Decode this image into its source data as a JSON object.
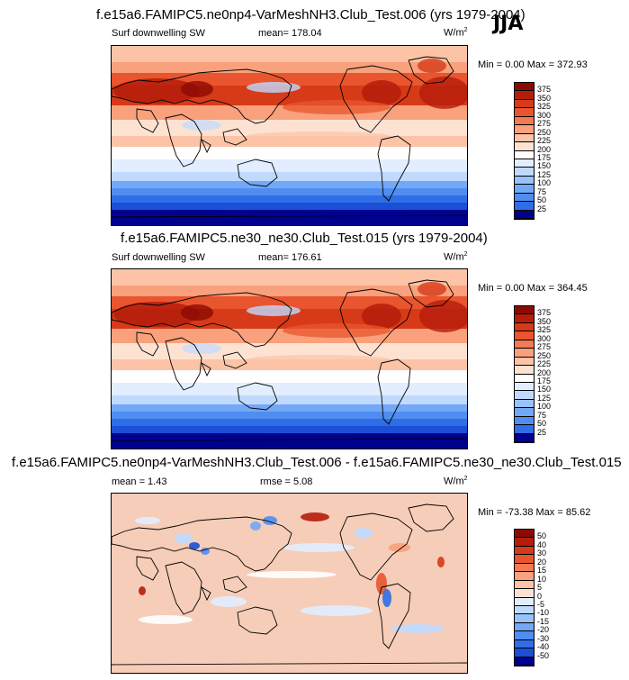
{
  "season": "JJA",
  "panels": [
    {
      "title": "f.e15a6.FAMIPC5.ne0np4-VarMeshNH3.Club_Test.006 (yrs 1979-2004)",
      "left_label": "Surf downwelling SW",
      "mean_text": "mean= 178.04",
      "units": "W/m",
      "units_sup": "2",
      "minmax": "Min =   0.00 Max = 372.93",
      "colorbar_labels": [
        "375",
        "350",
        "325",
        "300",
        "275",
        "250",
        "225",
        "200",
        "175",
        "150",
        "125",
        "100",
        "75",
        "50",
        "25"
      ]
    },
    {
      "title": "f.e15a6.FAMIPC5.ne30_ne30.Club_Test.015 (yrs 1979-2004)",
      "left_label": "Surf downwelling SW",
      "mean_text": "mean= 176.61",
      "units": "W/m",
      "units_sup": "2",
      "minmax": "Min =   0.00 Max = 364.45",
      "colorbar_labels": [
        "375",
        "350",
        "325",
        "300",
        "275",
        "250",
        "225",
        "200",
        "175",
        "150",
        "125",
        "100",
        "75",
        "50",
        "25"
      ]
    },
    {
      "title": "f.e15a6.FAMIPC5.ne0np4-VarMeshNH3.Club_Test.006 - f.e15a6.FAMIPC5.ne30_ne30.Club_Test.015",
      "left_label": "mean =   1.43",
      "mean_text": "rmse =   5.08",
      "units": "W/m",
      "units_sup": "2",
      "minmax": "Min = -73.38 Max =  85.62",
      "colorbar_labels": [
        "50",
        "40",
        "30",
        "20",
        "15",
        "10",
        "5",
        "0",
        "-5",
        "-10",
        "-15",
        "-20",
        "-30",
        "-40",
        "-50"
      ]
    }
  ],
  "colors": {
    "ramp": [
      "#00008f",
      "#0a2fb0",
      "#1a4fd6",
      "#2f6ee6",
      "#4f8ef0",
      "#72a8f6",
      "#99c2fa",
      "#c0daff",
      "#e2eeff",
      "#ffffff",
      "#fde2d2",
      "#fcc3a7",
      "#f9a07c",
      "#f47a52",
      "#e8552e",
      "#d63a18",
      "#b51d0b",
      "#8c0a04"
    ],
    "ocean": "#f6cdb8",
    "coast": "#000000"
  },
  "chart_data": [
    {
      "type": "heatmap",
      "title": "f.e15a6.FAMIPC5.ne0np4-VarMeshNH3.Club_Test.006 (yrs 1979-2004)",
      "variable": "Surf downwelling SW",
      "units": "W/m2",
      "season": "JJA",
      "mean": 178.04,
      "min": 0.0,
      "max": 372.93,
      "levels": [
        25,
        50,
        75,
        100,
        125,
        150,
        175,
        200,
        225,
        250,
        275,
        300,
        325,
        350,
        375
      ]
    },
    {
      "type": "heatmap",
      "title": "f.e15a6.FAMIPC5.ne30_ne30.Club_Test.015 (yrs 1979-2004)",
      "variable": "Surf downwelling SW",
      "units": "W/m2",
      "season": "JJA",
      "mean": 176.61,
      "min": 0.0,
      "max": 364.45,
      "levels": [
        25,
        50,
        75,
        100,
        125,
        150,
        175,
        200,
        225,
        250,
        275,
        300,
        325,
        350,
        375
      ]
    },
    {
      "type": "heatmap",
      "title": "f.e15a6.FAMIPC5.ne0np4-VarMeshNH3.Club_Test.006 - f.e15a6.FAMIPC5.ne30_ne30.Club_Test.015",
      "variable": "difference",
      "units": "W/m2",
      "mean": 1.43,
      "rmse": 5.08,
      "min": -73.38,
      "max": 85.62,
      "levels": [
        -50,
        -40,
        -30,
        -20,
        -15,
        -10,
        -5,
        0,
        5,
        10,
        15,
        20,
        30,
        40,
        50
      ]
    }
  ]
}
